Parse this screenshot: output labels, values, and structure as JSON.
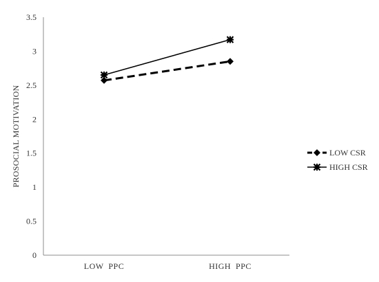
{
  "chart_data": {
    "type": "line",
    "title": "",
    "xlabel": "",
    "ylabel": "PROSOCIAL MOTIVATION",
    "categories": [
      "LOW  PPC",
      "HIGH  PPC"
    ],
    "ylim": [
      0,
      3.5
    ],
    "yticks": [
      "0",
      "0.5",
      "1",
      "1.5",
      "2",
      "2.5",
      "3",
      "3.5"
    ],
    "grid": false,
    "legend_position": "right",
    "series": [
      {
        "name": "LOW CSR",
        "values": [
          2.57,
          2.85
        ],
        "line_style": "dashed",
        "marker": "diamond",
        "color": "#000000"
      },
      {
        "name": "HIGH CSR",
        "values": [
          2.65,
          3.17
        ],
        "line_style": "solid",
        "marker": "star",
        "color": "#000000"
      }
    ]
  }
}
